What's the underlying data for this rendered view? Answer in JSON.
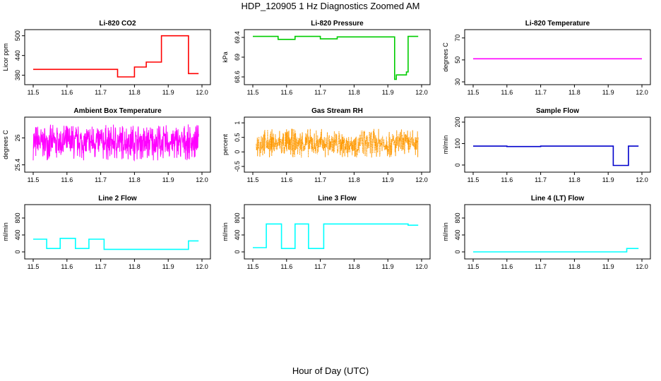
{
  "page": {
    "title": "HDP_120905  1 Hz Diagnostics Zoomed AM",
    "x_axis_title": "Hour of Day (UTC)"
  },
  "chart_data": [
    {
      "type": "line",
      "title": "Li-820 CO2",
      "ylabel": "Licor ppm",
      "color": "#ff0000",
      "xlim": [
        11.5,
        12.0
      ],
      "ylim": [
        360,
        510
      ],
      "x_ticks": [
        "11.5",
        "11.6",
        "11.7",
        "11.8",
        "11.9",
        "12.0"
      ],
      "y_ticks": [
        380,
        440,
        500
      ],
      "style": "line",
      "series": [
        {
          "x": [
            11.5,
            11.75,
            11.75,
            11.8,
            11.8,
            11.835,
            11.835,
            11.88,
            11.88,
            11.96,
            11.96,
            11.99
          ],
          "y": [
            398,
            398,
            375,
            375,
            405,
            405,
            420,
            420,
            500,
            500,
            385,
            385
          ]
        }
      ]
    },
    {
      "type": "line",
      "title": "Li-820 Pressure",
      "ylabel": "kPa",
      "color": "#00cc00",
      "xlim": [
        11.5,
        12.0
      ],
      "ylim": [
        68.5,
        69.5
      ],
      "x_ticks": [
        "11.5",
        "11.6",
        "11.7",
        "11.8",
        "11.9",
        "12.0"
      ],
      "y_ticks": [
        68.6,
        69.0,
        69.4
      ],
      "style": "line",
      "series": [
        {
          "x": [
            11.5,
            11.575,
            11.575,
            11.625,
            11.625,
            11.7,
            11.7,
            11.75,
            11.75,
            11.92,
            11.92,
            11.925,
            11.925,
            11.955,
            11.955,
            11.96,
            11.96,
            11.99
          ],
          "y": [
            69.42,
            69.42,
            69.36,
            69.36,
            69.42,
            69.42,
            69.37,
            69.37,
            69.41,
            69.41,
            68.55,
            68.55,
            68.64,
            68.64,
            68.7,
            68.7,
            69.42,
            69.42
          ]
        }
      ]
    },
    {
      "type": "line",
      "title": "Li-820 Temperature",
      "ylabel": "degrees C",
      "color": "#ff00ff",
      "xlim": [
        11.5,
        12.0
      ],
      "ylim": [
        30,
        75
      ],
      "x_ticks": [
        "11.5",
        "11.6",
        "11.7",
        "11.8",
        "11.9",
        "12.0"
      ],
      "y_ticks": [
        30,
        50,
        70
      ],
      "style": "line",
      "series": [
        {
          "x": [
            11.5,
            12.0
          ],
          "y": [
            51,
            51
          ]
        }
      ]
    },
    {
      "type": "line",
      "title": "Ambient Box Temperature",
      "ylabel": "degrees C",
      "color": "#ff00ff",
      "xlim": [
        11.5,
        12.0
      ],
      "ylim": [
        25.3,
        26.4
      ],
      "x_ticks": [
        "11.5",
        "11.6",
        "11.7",
        "11.8",
        "11.9",
        "12.0"
      ],
      "y_ticks": [
        25.4,
        26.0
      ],
      "style": "noise",
      "noise": {
        "x_start": 11.5,
        "x_end": 11.99,
        "low": 25.5,
        "high": 26.3,
        "center": 25.9
      }
    },
    {
      "type": "line",
      "title": "Gas Stream RH",
      "ylabel": "percent",
      "color": "#ff9900",
      "xlim": [
        11.5,
        12.0
      ],
      "ylim": [
        -0.6,
        1.1
      ],
      "x_ticks": [
        "11.5",
        "11.6",
        "11.7",
        "11.8",
        "11.9",
        "12.0"
      ],
      "y_ticks": [
        -0.5,
        0.0,
        0.5,
        1.0
      ],
      "style": "noise",
      "noise": {
        "x_start": 11.51,
        "x_end": 11.99,
        "low": -0.2,
        "high": 0.8,
        "center": 0.25
      }
    },
    {
      "type": "line",
      "title": "Sample Flow",
      "ylabel": "ml/min",
      "color": "#0000cc",
      "xlim": [
        11.5,
        12.0
      ],
      "ylim": [
        -20,
        210
      ],
      "x_ticks": [
        "11.5",
        "11.6",
        "11.7",
        "11.8",
        "11.9",
        "12.0"
      ],
      "y_ticks": [
        0,
        100,
        200
      ],
      "style": "line",
      "series": [
        {
          "x": [
            11.5,
            11.6,
            11.6,
            11.7,
            11.7,
            11.915,
            11.915,
            11.96,
            11.96,
            11.99
          ],
          "y": [
            88,
            88,
            86,
            86,
            88,
            88,
            -2,
            -2,
            88,
            88
          ]
        }
      ]
    },
    {
      "type": "line",
      "title": "Line 2 Flow",
      "ylabel": "ml/min",
      "color": "#00ffff",
      "xlim": [
        11.5,
        12.0
      ],
      "ylim": [
        -100,
        1050
      ],
      "x_ticks": [
        "11.5",
        "11.6",
        "11.7",
        "11.8",
        "11.9",
        "12.0"
      ],
      "y_ticks": [
        0,
        400,
        800
      ],
      "style": "line",
      "series": [
        {
          "x": [
            11.5,
            11.54,
            11.54,
            11.58,
            11.58,
            11.625,
            11.625,
            11.665,
            11.665,
            11.71,
            11.71,
            11.96,
            11.96,
            11.99
          ],
          "y": [
            300,
            300,
            80,
            80,
            320,
            320,
            80,
            80,
            300,
            300,
            60,
            60,
            260,
            260
          ]
        }
      ]
    },
    {
      "type": "line",
      "title": "Line 3 Flow",
      "ylabel": "ml/min",
      "color": "#00ffff",
      "xlim": [
        11.5,
        12.0
      ],
      "ylim": [
        -100,
        1050
      ],
      "x_ticks": [
        "11.5",
        "11.6",
        "11.7",
        "11.8",
        "11.9",
        "12.0"
      ],
      "y_ticks": [
        0,
        400,
        800
      ],
      "style": "line",
      "series": [
        {
          "x": [
            11.5,
            11.54,
            11.54,
            11.585,
            11.585,
            11.625,
            11.625,
            11.665,
            11.665,
            11.71,
            11.71,
            11.96,
            11.96,
            11.99
          ],
          "y": [
            100,
            100,
            660,
            660,
            80,
            80,
            660,
            660,
            80,
            80,
            660,
            660,
            630,
            630
          ]
        }
      ]
    },
    {
      "type": "line",
      "title": "Line 4 (LT) Flow",
      "ylabel": "ml/min",
      "color": "#00ffff",
      "xlim": [
        11.5,
        12.0
      ],
      "ylim": [
        -100,
        1050
      ],
      "x_ticks": [
        "11.5",
        "11.6",
        "11.7",
        "11.8",
        "11.9",
        "12.0"
      ],
      "y_ticks": [
        0,
        400,
        800
      ],
      "style": "line",
      "series": [
        {
          "x": [
            11.5,
            11.955,
            11.955,
            11.99
          ],
          "y": [
            0,
            0,
            80,
            80
          ]
        }
      ]
    }
  ]
}
